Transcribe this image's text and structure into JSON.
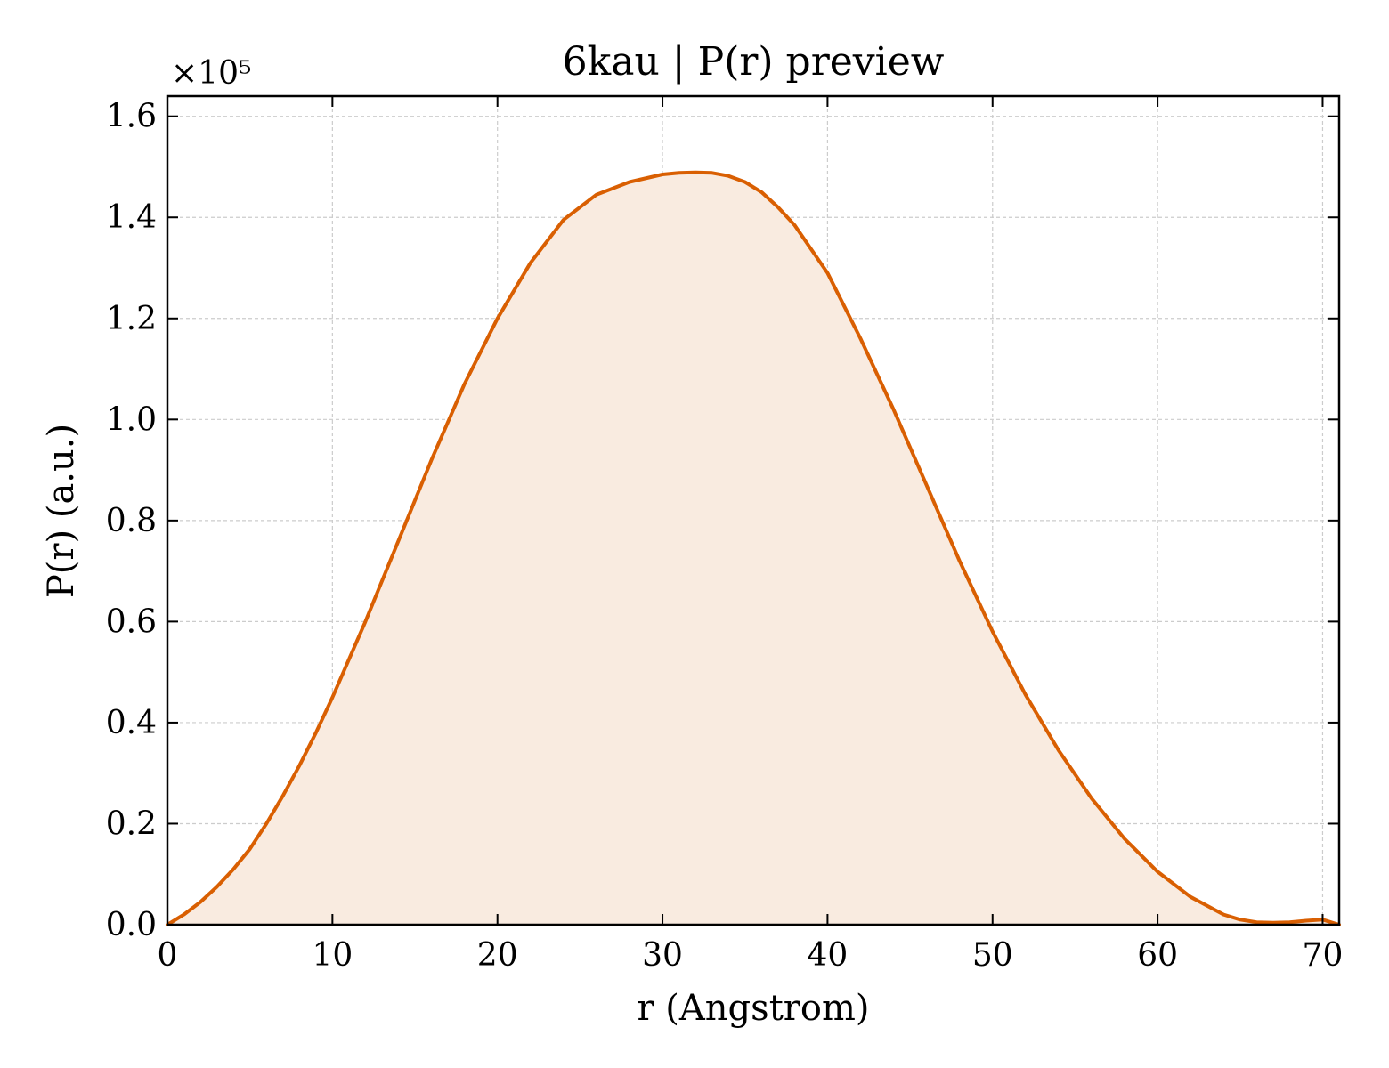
{
  "chart_data": {
    "type": "area",
    "title": "6kau | P(r) preview",
    "xlabel": "r (Angstrom)",
    "ylabel": "P(r) (a.u.)",
    "y_multiplier_label": "×10⁵",
    "xlim": [
      0,
      71
    ],
    "ylim": [
      0,
      1.64
    ],
    "x_ticks": [
      0,
      10,
      20,
      30,
      40,
      50,
      60,
      70
    ],
    "y_ticks": [
      0.0,
      0.2,
      0.4,
      0.6,
      0.8,
      1.0,
      1.2,
      1.4,
      1.6
    ],
    "x_tick_labels": [
      "0",
      "10",
      "20",
      "30",
      "40",
      "50",
      "60",
      "70"
    ],
    "y_tick_labels": [
      "0.0",
      "0.2",
      "0.4",
      "0.6",
      "0.8",
      "1.0",
      "1.2",
      "1.4",
      "1.6"
    ],
    "grid": true,
    "line_color": "#d95f02",
    "fill_color": "#f9ebe0",
    "series": [
      {
        "x": [
          0,
          1,
          2,
          3,
          4,
          5,
          6,
          7,
          8,
          9,
          10,
          12,
          14,
          16,
          18,
          20,
          22,
          24,
          26,
          28,
          30,
          31,
          32,
          33,
          34,
          35,
          36,
          37,
          38,
          40,
          42,
          44,
          46,
          48,
          50,
          52,
          54,
          56,
          58,
          60,
          62,
          64,
          65,
          66,
          67,
          68,
          69,
          70,
          71
        ],
        "y": [
          0.0,
          0.02,
          0.045,
          0.075,
          0.11,
          0.15,
          0.2,
          0.255,
          0.315,
          0.38,
          0.45,
          0.6,
          0.76,
          0.92,
          1.07,
          1.2,
          1.31,
          1.395,
          1.445,
          1.47,
          1.485,
          1.488,
          1.489,
          1.488,
          1.482,
          1.47,
          1.45,
          1.42,
          1.385,
          1.29,
          1.16,
          1.02,
          0.87,
          0.72,
          0.58,
          0.455,
          0.345,
          0.25,
          0.17,
          0.105,
          0.055,
          0.02,
          0.01,
          0.005,
          0.004,
          0.005,
          0.008,
          0.01,
          0.0
        ]
      }
    ]
  }
}
